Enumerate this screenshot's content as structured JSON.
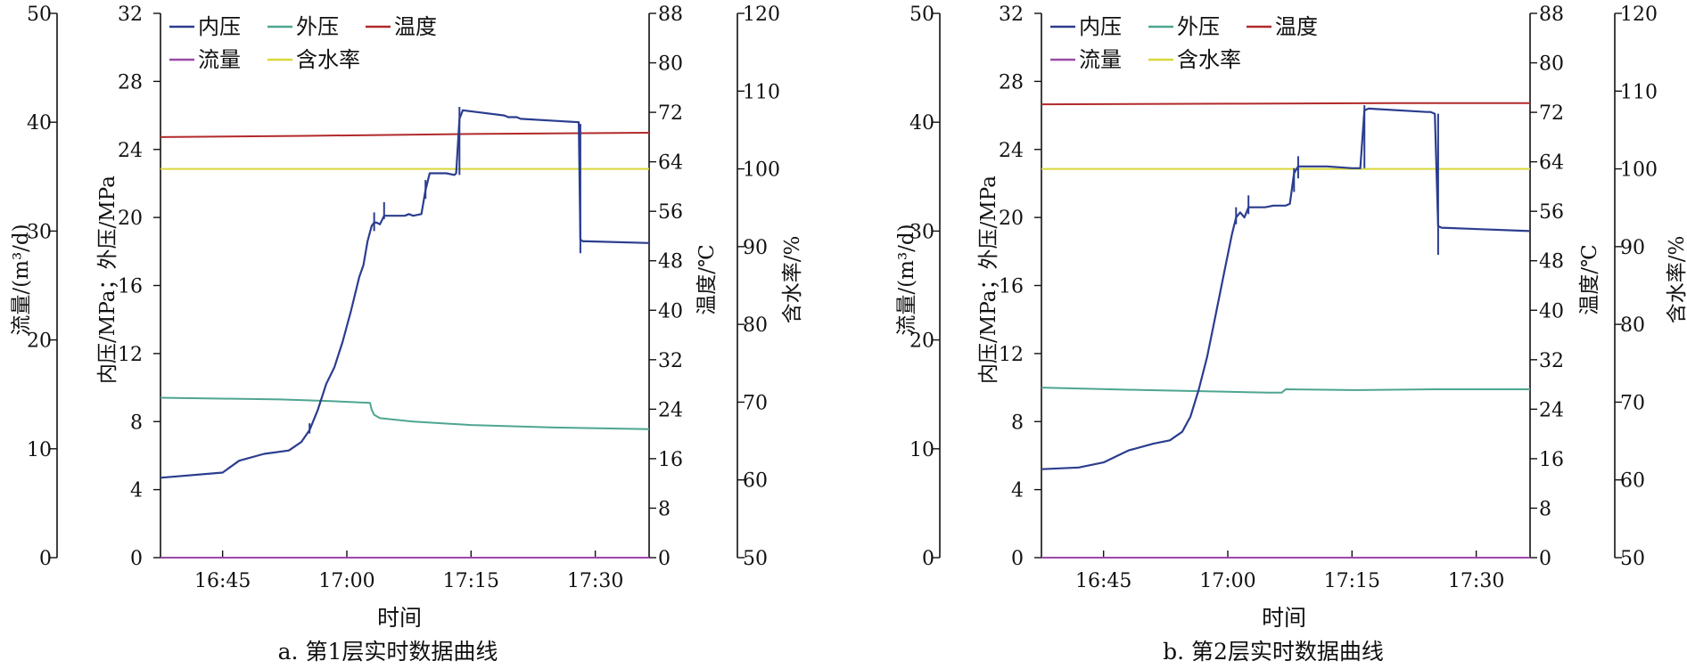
{
  "chart_data": [
    {
      "type": "line",
      "caption": "a. 第1层实时数据曲线",
      "xlabel": "时间",
      "x_ticks": [
        "16:45",
        "17:00",
        "17:15",
        "17:30"
      ],
      "x_tick_minutes": [
        45,
        60,
        75,
        90
      ],
      "xlim_minutes": [
        37.5,
        96.5
      ],
      "x_unit": "minutes past 16:00",
      "axes": {
        "flow": {
          "label": "流量/(m³/d)",
          "ticks": [
            0,
            10,
            20,
            30,
            40,
            50
          ],
          "ylim": [
            0,
            50
          ]
        },
        "pressure": {
          "label": "内压/MPa；外压/MPa",
          "ticks": [
            0,
            4,
            8,
            12,
            16,
            20,
            24,
            28,
            32
          ],
          "ylim": [
            0,
            32
          ]
        },
        "temperature": {
          "label": "温度/℃",
          "ticks": [
            0,
            8,
            16,
            24,
            32,
            40,
            48,
            56,
            64,
            72,
            80,
            88
          ],
          "ylim": [
            0,
            88
          ]
        },
        "water_cut": {
          "label": "含水率/%",
          "ticks": [
            50,
            60,
            70,
            80,
            90,
            100,
            110,
            120
          ],
          "ylim": [
            50,
            120
          ]
        }
      },
      "legend": {
        "placement": "top-left",
        "entries": [
          "内压",
          "外压",
          "温度",
          "流量",
          "含水率"
        ]
      },
      "series": [
        {
          "name": "内压",
          "axis": "pressure",
          "color": "#2b3d8f",
          "x": [
            37.5,
            45,
            47,
            50,
            53,
            54.5,
            55.5,
            56.5,
            57.5,
            58.5,
            59.5,
            60.5,
            61.5,
            62,
            62.5,
            63,
            63.3,
            63.6,
            64,
            64.5,
            67,
            67.5,
            68,
            69,
            69.5,
            70,
            72,
            73,
            73.2,
            73.6,
            74,
            79,
            79.5,
            80,
            80.5,
            81,
            88,
            88.2,
            88.5,
            89,
            96.5
          ],
          "y": [
            4.7,
            5.0,
            5.7,
            6.1,
            6.3,
            6.8,
            7.5,
            8.7,
            10.2,
            11.2,
            12.7,
            14.5,
            16.5,
            17.2,
            18.6,
            19.5,
            19.7,
            19.7,
            19.6,
            20.1,
            20.1,
            20.2,
            20.1,
            20.2,
            21.6,
            22.6,
            22.6,
            22.5,
            22.6,
            25.8,
            26.3,
            26.0,
            25.9,
            25.9,
            25.9,
            25.8,
            25.6,
            18.7,
            18.6,
            18.6,
            18.5
          ],
          "spikes": [
            {
              "x": 55.5,
              "y": [
                7.3,
                7.9
              ]
            },
            {
              "x": 63.3,
              "y": [
                19.2,
                20.3
              ]
            },
            {
              "x": 64.5,
              "y": [
                19.9,
                20.9
              ]
            },
            {
              "x": 69.5,
              "y": [
                21.1,
                22.2
              ]
            },
            {
              "x": 73.6,
              "y": [
                22.5,
                26.5
              ]
            },
            {
              "x": 88.2,
              "y": [
                17.9,
                25.5
              ]
            }
          ]
        },
        {
          "name": "外压",
          "axis": "pressure",
          "color": "#4ea590",
          "x": [
            37.5,
            45,
            52,
            58,
            62.8,
            63,
            63.3,
            64,
            68,
            75,
            85,
            96.5
          ],
          "y": [
            9.4,
            9.35,
            9.3,
            9.2,
            9.1,
            8.7,
            8.4,
            8.2,
            8.0,
            7.8,
            7.65,
            7.55
          ]
        },
        {
          "name": "温度",
          "axis": "temperature",
          "color": "#b22a2a",
          "x": [
            37.5,
            55,
            75,
            96.5
          ],
          "y": [
            68.0,
            68.2,
            68.5,
            68.7
          ]
        },
        {
          "name": "流量",
          "axis": "flow",
          "color": "#9a4aa8",
          "x": [
            37.5,
            96.5
          ],
          "y": [
            0,
            0
          ]
        },
        {
          "name": "含水率",
          "axis": "water_cut",
          "color": "#d8d83a",
          "x": [
            37.5,
            96.5
          ],
          "y": [
            100,
            100
          ]
        }
      ]
    },
    {
      "type": "line",
      "caption": "b. 第2层实时数据曲线",
      "xlabel": "时间",
      "x_ticks": [
        "16:45",
        "17:00",
        "17:15",
        "17:30"
      ],
      "x_tick_minutes": [
        45,
        60,
        75,
        90
      ],
      "xlim_minutes": [
        37.5,
        96.5
      ],
      "x_unit": "minutes past 16:00",
      "axes": {
        "flow": {
          "label": "流量/(m³/d)",
          "ticks": [
            0,
            10,
            20,
            30,
            40,
            50
          ],
          "ylim": [
            0,
            50
          ]
        },
        "pressure": {
          "label": "内压/MPa；外压/MPa",
          "ticks": [
            0,
            4,
            8,
            12,
            16,
            20,
            24,
            28,
            32
          ],
          "ylim": [
            0,
            32
          ]
        },
        "temperature": {
          "label": "温度/℃",
          "ticks": [
            0,
            8,
            16,
            24,
            32,
            40,
            48,
            56,
            64,
            72,
            80,
            88
          ],
          "ylim": [
            0,
            88
          ]
        },
        "water_cut": {
          "label": "含水率/%",
          "ticks": [
            50,
            60,
            70,
            80,
            90,
            100,
            110,
            120
          ],
          "ylim": [
            50,
            120
          ]
        }
      },
      "legend": {
        "placement": "top-left",
        "entries": [
          "内压",
          "外压",
          "温度",
          "流量",
          "含水率"
        ]
      },
      "series": [
        {
          "name": "内压",
          "axis": "pressure",
          "color": "#2b3d8f",
          "x": [
            37.5,
            42,
            45,
            48,
            51,
            53,
            54.5,
            55.5,
            56.5,
            57.5,
            58.5,
            59.5,
            60.5,
            61,
            61.5,
            62,
            62.5,
            63.5,
            64.5,
            65.5,
            66.5,
            67,
            67.5,
            68,
            68.5,
            70.5,
            71,
            71.5,
            72,
            75,
            76,
            76.5,
            77,
            84,
            84.5,
            85,
            85.4,
            85.8,
            96.5
          ],
          "y": [
            5.2,
            5.3,
            5.6,
            6.3,
            6.7,
            6.9,
            7.4,
            8.3,
            9.9,
            11.8,
            14.2,
            16.6,
            19.0,
            20.0,
            20.3,
            20.0,
            20.6,
            20.6,
            20.6,
            20.7,
            20.7,
            20.7,
            20.8,
            22.6,
            23.0,
            23.0,
            23.0,
            23.0,
            23.0,
            22.9,
            22.9,
            26.3,
            26.4,
            26.2,
            26.2,
            26.1,
            19.5,
            19.4,
            19.2
          ],
          "spikes": [
            {
              "x": 61,
              "y": [
                19.6,
                20.6
              ]
            },
            {
              "x": 62.5,
              "y": [
                20.2,
                21.3
              ]
            },
            {
              "x": 68,
              "y": [
                21.5,
                22.9
              ]
            },
            {
              "x": 68.5,
              "y": [
                22.3,
                23.6
              ]
            },
            {
              "x": 76.5,
              "y": [
                22.9,
                26.6
              ]
            },
            {
              "x": 85.4,
              "y": [
                17.8,
                26.1
              ]
            }
          ]
        },
        {
          "name": "外压",
          "axis": "pressure",
          "color": "#4ea590",
          "x": [
            37.5,
            50,
            60,
            65,
            66.5,
            67,
            75,
            85,
            96.5
          ],
          "y": [
            10.0,
            9.85,
            9.75,
            9.7,
            9.7,
            9.9,
            9.85,
            9.9,
            9.9
          ]
        },
        {
          "name": "温度",
          "axis": "temperature",
          "color": "#b22a2a",
          "x": [
            37.5,
            60,
            80,
            96.5
          ],
          "y": [
            73.3,
            73.4,
            73.5,
            73.5
          ]
        },
        {
          "name": "流量",
          "axis": "flow",
          "color": "#9a4aa8",
          "x": [
            37.5,
            96.5
          ],
          "y": [
            0,
            0
          ]
        },
        {
          "name": "含水率",
          "axis": "water_cut",
          "color": "#d8d83a",
          "x": [
            37.5,
            96.5
          ],
          "y": [
            100,
            100
          ]
        }
      ]
    }
  ]
}
